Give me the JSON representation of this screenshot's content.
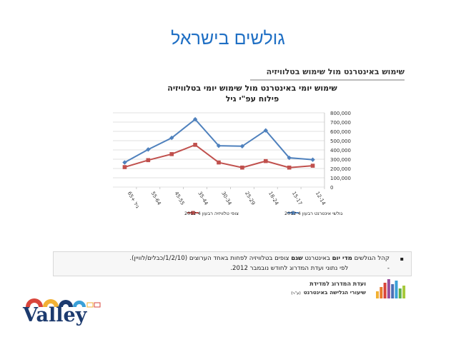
{
  "slide": {
    "title": "גולשים בישראל"
  },
  "figure": {
    "heading": "שימוש באינטרנט מול שימוש בטלוויזיה"
  },
  "chart_data": {
    "type": "line",
    "title": "שימוש יומי באינטרנט מול שימוש יומי בטלוויזיה",
    "subtitle": "פילוח עפ\"י גיל",
    "categories": [
      "12-14",
      "15-17",
      "18-24",
      "25-29",
      "30-34",
      "35-44",
      "45-55",
      "55-64",
      "65+ גיל"
    ],
    "series": [
      {
        "name": "גולשי אינטרנט רבעון 4 2012",
        "color": "#4f81bd",
        "values": [
          295000,
          315000,
          610000,
          440000,
          445000,
          730000,
          530000,
          405000,
          265000
        ]
      },
      {
        "name": "צופי טלוויזיה רבעון 4 2012",
        "color": "#c0504d",
        "values": [
          230000,
          210000,
          280000,
          210000,
          265000,
          455000,
          355000,
          290000,
          215000
        ]
      }
    ],
    "ylim": [
      0,
      800000
    ],
    "yticks": [
      "800,000",
      "700,000",
      "600,000",
      "500,000",
      "400,000",
      "300,000",
      "200,000",
      "100,000",
      "0"
    ],
    "ytick_values": [
      800000,
      700000,
      600000,
      500000,
      400000,
      300000,
      200000,
      100000,
      0
    ],
    "grid": true,
    "legend_position": "bottom",
    "x_order": "right-to-left"
  },
  "note": {
    "bullet": "▪",
    "line1_pre": "קהל הגולשים ",
    "line1_bold1": "מדי יום",
    "line1_mid": " באינטרנט ",
    "line1_bold2": "שגם",
    "line1_post": " צופים בטלוויזיה לפחות באחד הערוצים (1/2/10/כבלים/לוויין).",
    "line2": "לפי נתוני ועדת המדרוג לחודש נובמבר 2012.",
    "line2_dash": "-"
  },
  "logo": {
    "org_name": "ועדת המדרוג למדידת",
    "org_sub": "שיעורי הגלישה באינטרנט",
    "org_abbr": "(ע\"ר)",
    "bar_colors": [
      "#f2b134",
      "#e87a2a",
      "#d9453b",
      "#9a4e9a",
      "#4b6fb5",
      "#3aa0d8",
      "#5fb14d",
      "#a6c93a"
    ]
  },
  "brand": {
    "name": "Valley",
    "arc_colors": [
      "#d9453b",
      "#f2b134",
      "#1c3a6e",
      "#3aa0d8"
    ]
  }
}
